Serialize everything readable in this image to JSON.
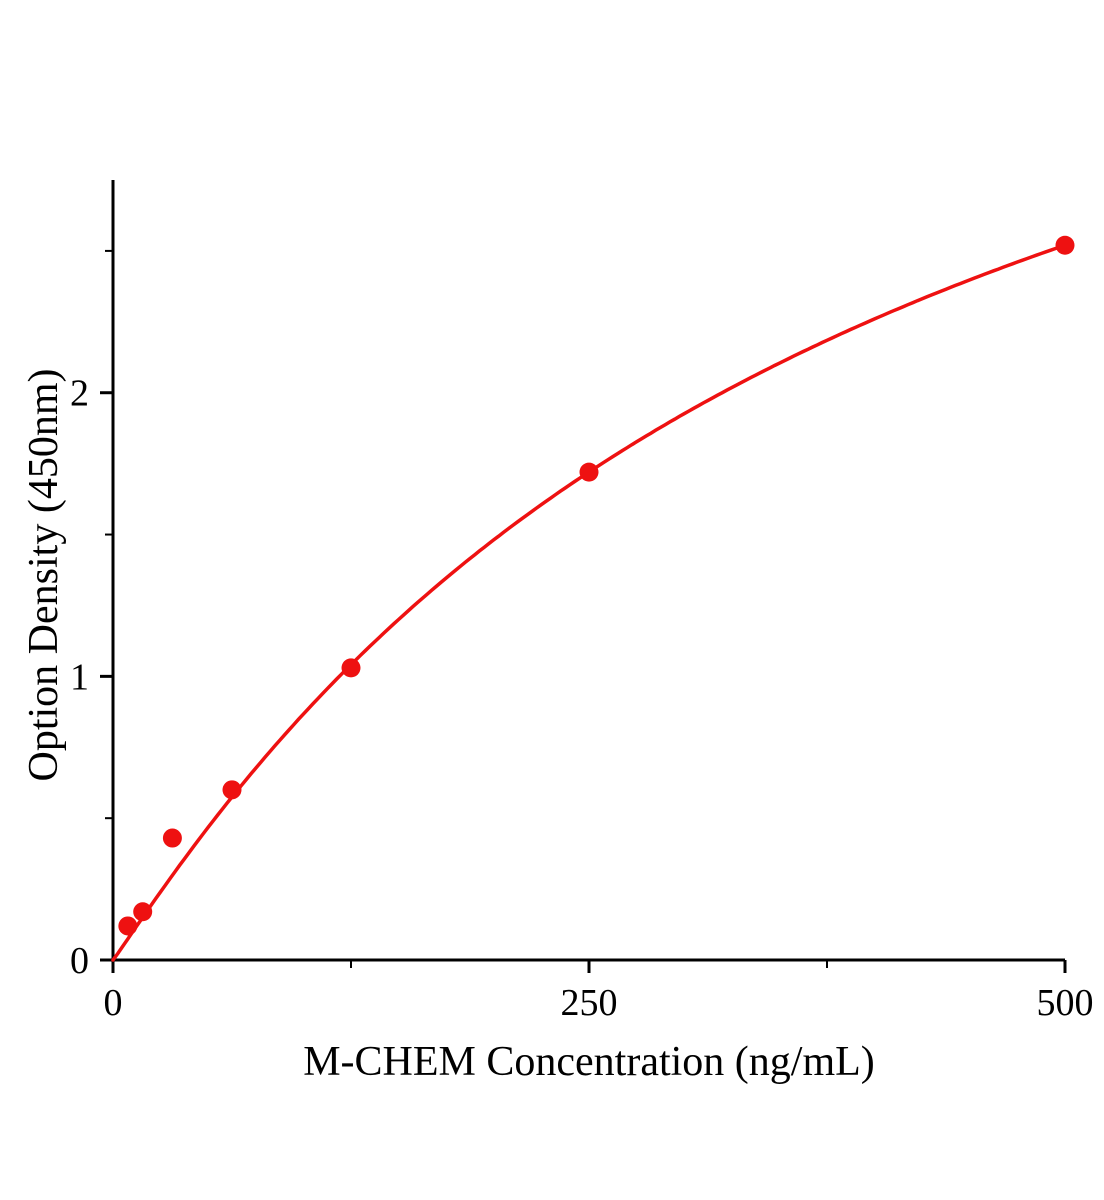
{
  "chart_data": {
    "type": "scatter",
    "title": "",
    "xlabel": "M-CHEM Concentration (ng/mL)",
    "ylabel": "Option Density (450nm)",
    "x": [
      7.8,
      15.6,
      31.2,
      62.5,
      125,
      250,
      500
    ],
    "y": [
      0.12,
      0.17,
      0.43,
      0.6,
      1.03,
      1.72,
      2.52
    ],
    "xlim": [
      0,
      500
    ],
    "ylim": [
      0,
      2.75
    ],
    "x_axis": {
      "major_ticks": [
        0,
        250,
        500
      ],
      "major_tick_labels": [
        "0",
        "250",
        "500"
      ],
      "minor_ticks": [
        125,
        375
      ]
    },
    "y_axis": {
      "major_ticks": [
        0,
        1,
        2
      ],
      "major_tick_labels": [
        "0",
        "1",
        "2"
      ],
      "minor_ticks": [
        0.5,
        1.5,
        2.5
      ]
    },
    "fit": {
      "model": "4PL",
      "a": 0,
      "d": 4.5,
      "c": 396.5,
      "b": 1.04
    },
    "colors": {
      "series": "#ee1111",
      "axis": "#000000",
      "background": "#ffffff"
    },
    "grid": false,
    "legend": false,
    "marker_radius": 9.5,
    "curve_width": 3.5
  }
}
